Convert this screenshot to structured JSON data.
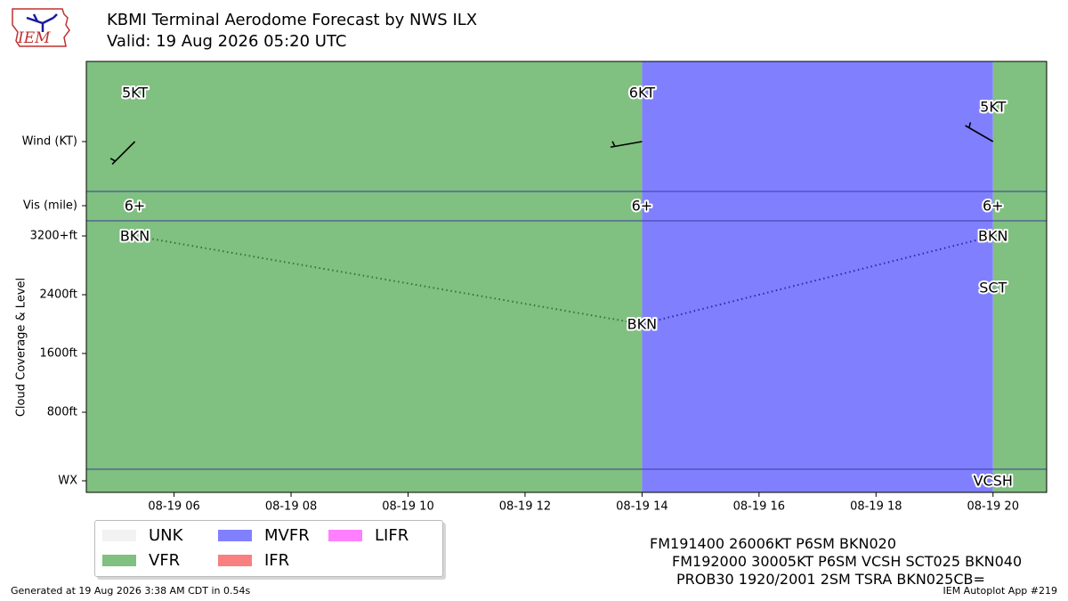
{
  "header": {
    "title": "KBMI Terminal Aerodome Forecast by NWS ILX",
    "subtitle": "Valid: 19 Aug 2026 05:20 UTC",
    "logo_text": "IEM"
  },
  "colors": {
    "UNK": "#f2f2f2",
    "VFR": "#80c080",
    "MVFR": "#8080ff",
    "IFR": "#f88080",
    "LIFR": "#ff80ff"
  },
  "chart_data": {
    "type": "timeline",
    "x_axis": {
      "range": [
        "2026-08-19T04:30",
        "2026-08-19T20:55"
      ],
      "tick_labels": [
        "08-19 06",
        "08-19 08",
        "08-19 10",
        "08-19 12",
        "08-19 14",
        "08-19 16",
        "08-19 18",
        "08-19 20"
      ],
      "tick_hours": [
        6,
        8,
        10,
        12,
        14,
        16,
        18,
        20
      ]
    },
    "row_labels": {
      "wind": "Wind (KT)",
      "vis": "Vis (mile)",
      "wx": "WX"
    },
    "cloud_axis": {
      "label": "Cloud Coverage & Level",
      "tick_labels": [
        "3200+ft",
        "2400ft",
        "1600ft",
        "800ft"
      ],
      "tick_values": [
        3200,
        2400,
        1600,
        800
      ],
      "range": [
        -800,
        3200
      ]
    },
    "category_periods": [
      {
        "start_hour": 4.5,
        "end_hour": 14,
        "category": "VFR"
      },
      {
        "start_hour": 14,
        "end_hour": 20,
        "category": "MVFR"
      },
      {
        "start_hour": 20,
        "end_hour": 20.92,
        "category": "VFR"
      }
    ],
    "forecasts": [
      {
        "hour": 5.33,
        "wind_label": "5KT",
        "wind_speed_kt": 5,
        "wind_dir_deg": 225,
        "vis": "6+",
        "clouds": [
          {
            "cover": "BKN",
            "level_ft": 3200
          }
        ],
        "wx": ""
      },
      {
        "hour": 14,
        "wind_label": "6KT",
        "wind_speed_kt": 6,
        "wind_dir_deg": 260,
        "vis": "6+",
        "clouds": [
          {
            "cover": "BKN",
            "level_ft": 2000
          }
        ],
        "wx": ""
      },
      {
        "hour": 20,
        "wind_label": "5KT",
        "wind_speed_kt": 5,
        "wind_dir_deg": 300,
        "vis": "6+",
        "clouds": [
          {
            "cover": "SCT",
            "level_ft": 2500
          },
          {
            "cover": "BKN",
            "level_ft": 3200
          }
        ],
        "wx": "VCSH"
      }
    ]
  },
  "legend": {
    "items": [
      {
        "label": "UNK",
        "key": "UNK"
      },
      {
        "label": "VFR",
        "key": "VFR"
      },
      {
        "label": "MVFR",
        "key": "MVFR"
      },
      {
        "label": "IFR",
        "key": "IFR"
      },
      {
        "label": "LIFR",
        "key": "LIFR"
      }
    ]
  },
  "taf_text": {
    "line1": "FM191400 26006KT P6SM BKN020",
    "line2": "FM192000 30005KT P6SM VCSH SCT025 BKN040",
    "line3": "PROB30 1920/2001 2SM TSRA BKN025CB="
  },
  "footer": {
    "generated": "Generated at 19 Aug 2026 3:38 AM CDT in 0.54s",
    "app": "IEM Autoplot App #219"
  }
}
